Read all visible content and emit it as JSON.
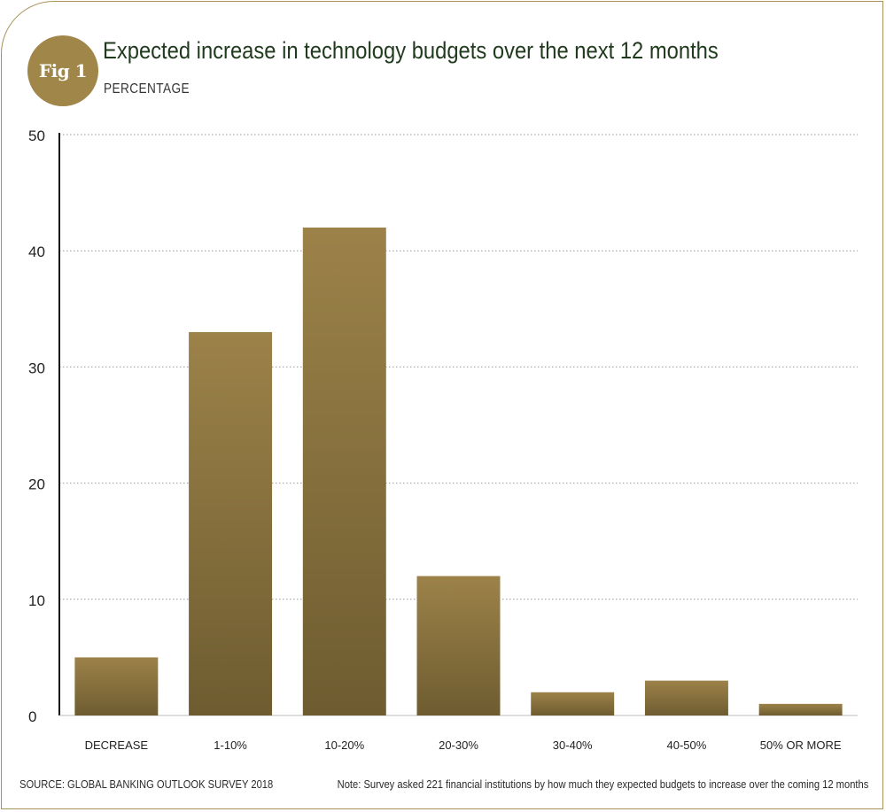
{
  "figure": {
    "badge": "Fig 1",
    "title": "Expected increase in technology budgets over the next 12 months",
    "subtitle": "PERCENTAGE",
    "source": "SOURCE: GLOBAL BANKING OUTLOOK SURVEY 2018",
    "note": "Note: Survey asked 221 financial institutions by how much they expected budgets to increase over the coming 12 months"
  },
  "colors": {
    "bar_top": "#9c8249",
    "bar_bottom": "#6e5c30",
    "frame": "#a8925a",
    "title": "#1f3a1c",
    "grid": "#9a9a9a"
  },
  "chart_data": {
    "type": "bar",
    "title": "Expected increase in technology budgets over the next 12 months",
    "subtitle": "PERCENTAGE",
    "categories": [
      "DECREASE",
      "1-10%",
      "10-20%",
      "20-30%",
      "30-40%",
      "40-50%",
      "50% OR MORE"
    ],
    "values": [
      5,
      33,
      42,
      12,
      2,
      3,
      1
    ],
    "ylim": [
      0,
      50
    ],
    "yticks": [
      0,
      10,
      20,
      30,
      40,
      50
    ],
    "xlabel": "",
    "ylabel": "",
    "grid": true,
    "grid_style": "dotted",
    "legend": false
  }
}
